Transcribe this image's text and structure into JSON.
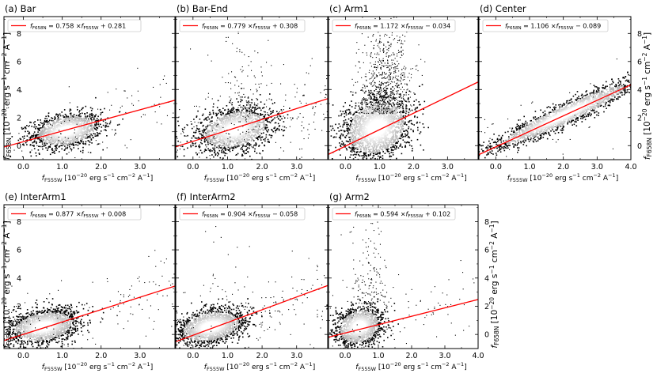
{
  "figure": {
    "xlabel": {
      "main": "f",
      "sub": "F555W",
      "unit": " [10",
      "exp1": "−20",
      "mid": " erg s",
      "exp2": "−1",
      "mid2": " cm",
      "exp3": "−2",
      "mid3": " A",
      "exp4": "−1",
      "end": "]"
    },
    "ylabel": {
      "main": "f",
      "sub": "F658N",
      "unit": " [10",
      "exp1": "−20",
      "mid": " erg s",
      "exp2": "−1",
      "mid2": " cm",
      "exp3": "−2",
      "mid3": " A",
      "exp4": "−1",
      "end": "]"
    }
  },
  "chart_data": [
    {
      "type": "scatter",
      "panel": "(a) Bar",
      "xlim": [
        -0.5,
        3.9
      ],
      "ylim": [
        -1,
        9.2
      ],
      "xticks": [
        0.0,
        1.0,
        2.0,
        3.0
      ],
      "yticks": [
        0,
        2,
        4,
        6,
        8
      ],
      "fit": {
        "slope": 0.758,
        "intercept": 0.281,
        "legend": {
          "lhs": "f",
          "lsub": "F658N",
          "eq": " = 0.758 ×",
          "rhs": "f",
          "rsub": "F555W",
          "tail": " + 0.281"
        }
      },
      "density": {
        "cx": 1.1,
        "cy": 1.1,
        "sx": 0.45,
        "sy": 0.6,
        "n": 1500,
        "outliers": 120,
        "plume": 0
      }
    },
    {
      "type": "scatter",
      "panel": "(b) Bar-End",
      "xlim": [
        -0.5,
        3.9
      ],
      "ylim": [
        -1,
        9.2
      ],
      "xticks": [
        0.0,
        1.0,
        2.0,
        3.0
      ],
      "yticks": [
        0,
        2,
        4,
        6,
        8
      ],
      "fit": {
        "slope": 0.779,
        "intercept": 0.308,
        "legend": {
          "lhs": "f",
          "lsub": "F658N",
          "eq": " = 0.779 ×",
          "rhs": "f",
          "rsub": "F555W",
          "tail": " + 0.308"
        }
      },
      "density": {
        "cx": 1.2,
        "cy": 1.2,
        "sx": 0.55,
        "sy": 0.75,
        "n": 1700,
        "outliers": 350,
        "plume": 0.3
      }
    },
    {
      "type": "scatter",
      "panel": "(c) Arm1",
      "xlim": [
        -0.5,
        3.9
      ],
      "ylim": [
        -1,
        9.2
      ],
      "xticks": [
        0.0,
        1.0,
        2.0,
        3.0
      ],
      "yticks": [
        0,
        2,
        4,
        6,
        8
      ],
      "fit": {
        "slope": 1.172,
        "intercept": -0.034,
        "legend": {
          "lhs": "f",
          "lsub": "F658N",
          "eq": " = 1.172 ×",
          "rhs": "f",
          "rsub": "F555W",
          "tail": " − 0.034"
        }
      },
      "density": {
        "cx": 0.9,
        "cy": 1.3,
        "sx": 0.5,
        "sy": 1.1,
        "n": 2000,
        "outliers": 700,
        "plume": 1.0
      }
    },
    {
      "type": "scatter",
      "panel": "(d) Center",
      "xlim": [
        -0.5,
        4.0
      ],
      "ylim": [
        -1,
        9.2
      ],
      "xticks": [
        0.0,
        1.0,
        2.0,
        3.0,
        4.0
      ],
      "yticks": [
        0,
        2,
        4,
        6,
        8
      ],
      "fit": {
        "slope": 1.106,
        "intercept": -0.089,
        "legend": {
          "lhs": "f",
          "lsub": "F658N",
          "eq": " = 1.106 ×",
          "rhs": "f",
          "rsub": "F555W",
          "tail": " − 0.089"
        }
      },
      "density": {
        "cx": 2.0,
        "cy": 2.2,
        "sx": 1.1,
        "sy": 0.5,
        "n": 2000,
        "outliers": 40,
        "plume": 0,
        "elong": true
      }
    },
    {
      "type": "scatter",
      "panel": "(e) InterArm1",
      "xlim": [
        -0.5,
        3.9
      ],
      "ylim": [
        -1,
        9.2
      ],
      "xticks": [
        0.0,
        1.0,
        2.0,
        3.0
      ],
      "yticks": [
        0,
        2,
        4,
        6,
        8
      ],
      "fit": {
        "slope": 0.877,
        "intercept": 0.008,
        "legend": {
          "lhs": "f",
          "lsub": "F658N",
          "eq": " = 0.877 ×",
          "rhs": "f",
          "rsub": "F555W",
          "tail": " + 0.008"
        }
      },
      "density": {
        "cx": 0.5,
        "cy": 0.6,
        "sx": 0.45,
        "sy": 0.6,
        "n": 1800,
        "outliers": 150,
        "plume": 0
      }
    },
    {
      "type": "scatter",
      "panel": "(f) InterArm2",
      "xlim": [
        -0.5,
        3.9
      ],
      "ylim": [
        -1,
        9.2
      ],
      "xticks": [
        0.0,
        1.0,
        2.0,
        3.0
      ],
      "yticks": [
        0,
        2,
        4,
        6,
        8
      ],
      "fit": {
        "slope": 0.904,
        "intercept": -0.058,
        "legend": {
          "lhs": "f",
          "lsub": "F658N",
          "eq": " = 0.904 ×",
          "rhs": "f",
          "rsub": "F555W",
          "tail": " − 0.058"
        }
      },
      "density": {
        "cx": 0.5,
        "cy": 0.6,
        "sx": 0.5,
        "sy": 0.6,
        "n": 1800,
        "outliers": 180,
        "plume": 0.1
      }
    },
    {
      "type": "scatter",
      "panel": "(g) Arm2",
      "xlim": [
        -0.5,
        4.0
      ],
      "ylim": [
        -1,
        9.2
      ],
      "xticks": [
        0.0,
        1.0,
        2.0,
        3.0,
        4.0
      ],
      "yticks": [
        0,
        2,
        4,
        6,
        8
      ],
      "fit": {
        "slope": 0.594,
        "intercept": 0.102,
        "legend": {
          "lhs": "f",
          "lsub": "F658N",
          "eq": " = 0.594 ×",
          "rhs": "f",
          "rsub": "F555W",
          "tail": " + 0.102"
        }
      },
      "density": {
        "cx": 0.4,
        "cy": 0.6,
        "sx": 0.35,
        "sy": 0.7,
        "n": 1500,
        "outliers": 250,
        "plume": 0.6
      }
    }
  ]
}
